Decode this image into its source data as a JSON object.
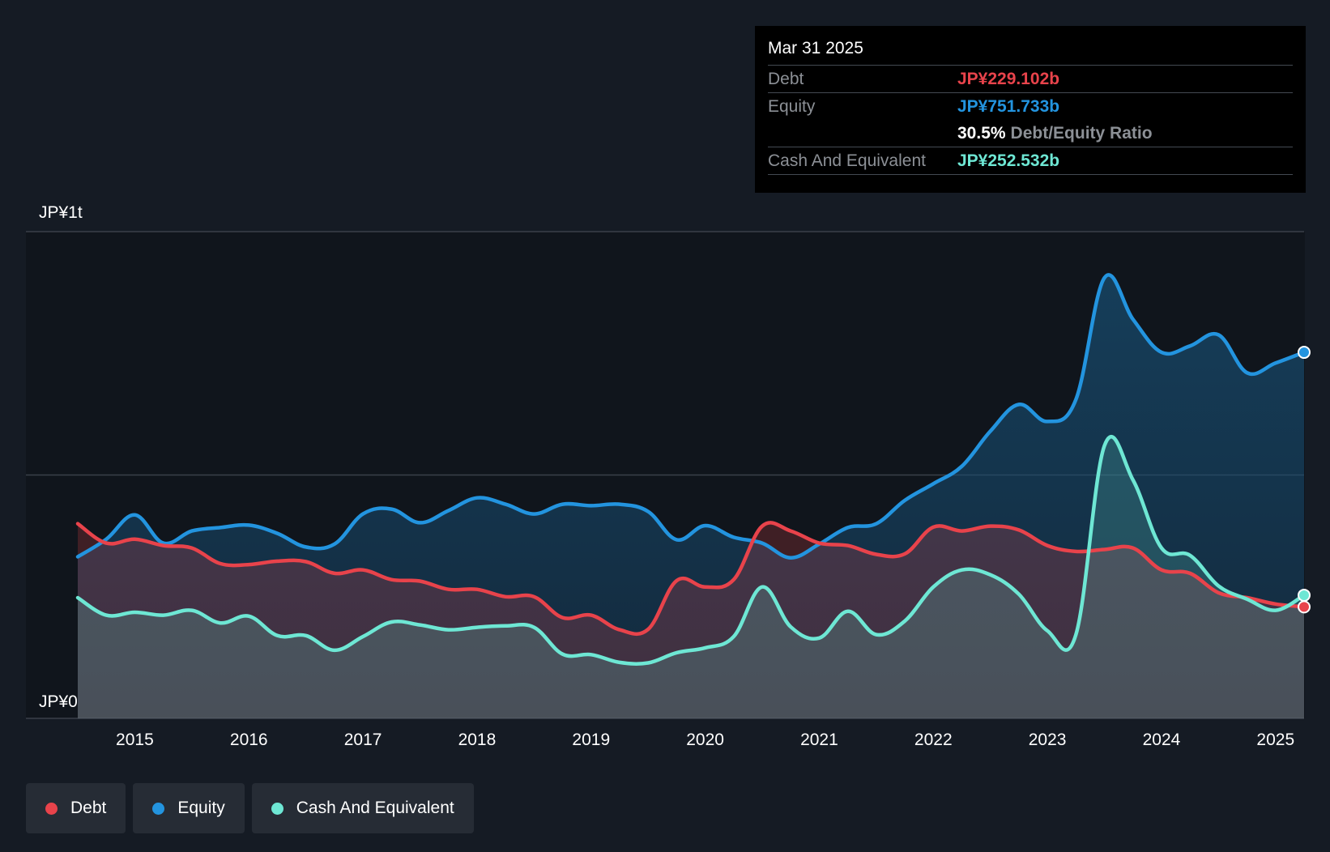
{
  "tooltip": {
    "date": "Mar 31 2025",
    "debt_label": "Debt",
    "debt_value": "JP¥229.102b",
    "equity_label": "Equity",
    "equity_value": "JP¥751.733b",
    "ratio_value": "30.5%",
    "ratio_label": "Debt/Equity Ratio",
    "cash_label": "Cash And Equivalent",
    "cash_value": "JP¥252.532b"
  },
  "legend": [
    {
      "label": "Debt",
      "color": "#e8434b"
    },
    {
      "label": "Equity",
      "color": "#2394df"
    },
    {
      "label": "Cash And Equivalent",
      "color": "#6ee7d4"
    }
  ],
  "colors": {
    "debt": "#e8434b",
    "equity": "#2394df",
    "cash": "#6ee7d4"
  },
  "chart_data": {
    "type": "area",
    "y_unit": "JP¥ billions",
    "ylim": [
      0,
      1000
    ],
    "y_tick_labels": [
      {
        "value": 1000,
        "label": "JP¥1t"
      },
      {
        "value": 0,
        "label": "JP¥0"
      }
    ],
    "gridlines": [
      1000,
      500
    ],
    "xlim": [
      2014.5,
      2025.25
    ],
    "x_ticks": [
      "2015",
      "2016",
      "2017",
      "2018",
      "2019",
      "2020",
      "2021",
      "2022",
      "2023",
      "2024",
      "2025"
    ],
    "series": [
      {
        "name": "Equity",
        "color": "#2394df",
        "points": [
          [
            2014.5,
            332
          ],
          [
            2014.75,
            368
          ],
          [
            2015.0,
            418
          ],
          [
            2015.25,
            360
          ],
          [
            2015.5,
            385
          ],
          [
            2015.75,
            392
          ],
          [
            2016.0,
            397
          ],
          [
            2016.25,
            380
          ],
          [
            2016.5,
            352
          ],
          [
            2016.75,
            358
          ],
          [
            2017.0,
            420
          ],
          [
            2017.25,
            430
          ],
          [
            2017.5,
            402
          ],
          [
            2017.75,
            427
          ],
          [
            2018.0,
            453
          ],
          [
            2018.25,
            440
          ],
          [
            2018.5,
            420
          ],
          [
            2018.75,
            440
          ],
          [
            2019.0,
            437
          ],
          [
            2019.25,
            440
          ],
          [
            2019.5,
            425
          ],
          [
            2019.75,
            367
          ],
          [
            2020.0,
            396
          ],
          [
            2020.25,
            372
          ],
          [
            2020.5,
            360
          ],
          [
            2020.75,
            330
          ],
          [
            2021.0,
            358
          ],
          [
            2021.25,
            392
          ],
          [
            2021.5,
            400
          ],
          [
            2021.75,
            448
          ],
          [
            2022.0,
            482
          ],
          [
            2022.25,
            518
          ],
          [
            2022.5,
            590
          ],
          [
            2022.75,
            645
          ],
          [
            2023.0,
            610
          ],
          [
            2023.25,
            655
          ],
          [
            2023.5,
            905
          ],
          [
            2023.75,
            820
          ],
          [
            2024.0,
            752
          ],
          [
            2024.25,
            765
          ],
          [
            2024.5,
            788
          ],
          [
            2024.75,
            710
          ],
          [
            2025.0,
            730
          ],
          [
            2025.25,
            752
          ]
        ]
      },
      {
        "name": "Debt",
        "color": "#e8434b",
        "points": [
          [
            2014.5,
            400
          ],
          [
            2014.75,
            360
          ],
          [
            2015.0,
            368
          ],
          [
            2015.25,
            355
          ],
          [
            2015.5,
            350
          ],
          [
            2015.75,
            318
          ],
          [
            2016.0,
            316
          ],
          [
            2016.25,
            323
          ],
          [
            2016.5,
            322
          ],
          [
            2016.75,
            298
          ],
          [
            2017.0,
            305
          ],
          [
            2017.25,
            285
          ],
          [
            2017.5,
            282
          ],
          [
            2017.75,
            265
          ],
          [
            2018.0,
            265
          ],
          [
            2018.25,
            250
          ],
          [
            2018.5,
            250
          ],
          [
            2018.75,
            207
          ],
          [
            2019.0,
            212
          ],
          [
            2019.25,
            182
          ],
          [
            2019.5,
            183
          ],
          [
            2019.75,
            283
          ],
          [
            2020.0,
            270
          ],
          [
            2020.25,
            285
          ],
          [
            2020.5,
            395
          ],
          [
            2020.75,
            385
          ],
          [
            2021.0,
            360
          ],
          [
            2021.25,
            355
          ],
          [
            2021.5,
            337
          ],
          [
            2021.75,
            338
          ],
          [
            2022.0,
            393
          ],
          [
            2022.25,
            385
          ],
          [
            2022.5,
            395
          ],
          [
            2022.75,
            387
          ],
          [
            2023.0,
            355
          ],
          [
            2023.25,
            343
          ],
          [
            2023.5,
            347
          ],
          [
            2023.75,
            350
          ],
          [
            2024.0,
            305
          ],
          [
            2024.25,
            298
          ],
          [
            2024.5,
            258
          ],
          [
            2024.75,
            248
          ],
          [
            2025.0,
            235
          ],
          [
            2025.25,
            229
          ]
        ]
      },
      {
        "name": "Cash And Equivalent",
        "color": "#6ee7d4",
        "points": [
          [
            2014.5,
            248
          ],
          [
            2014.75,
            212
          ],
          [
            2015.0,
            218
          ],
          [
            2015.25,
            212
          ],
          [
            2015.5,
            222
          ],
          [
            2015.75,
            196
          ],
          [
            2016.0,
            210
          ],
          [
            2016.25,
            170
          ],
          [
            2016.5,
            170
          ],
          [
            2016.75,
            140
          ],
          [
            2017.0,
            168
          ],
          [
            2017.25,
            198
          ],
          [
            2017.5,
            192
          ],
          [
            2017.75,
            182
          ],
          [
            2018.0,
            187
          ],
          [
            2018.25,
            190
          ],
          [
            2018.5,
            187
          ],
          [
            2018.75,
            132
          ],
          [
            2019.0,
            131
          ],
          [
            2019.25,
            115
          ],
          [
            2019.5,
            114
          ],
          [
            2019.75,
            135
          ],
          [
            2020.0,
            145
          ],
          [
            2020.25,
            168
          ],
          [
            2020.5,
            270
          ],
          [
            2020.75,
            188
          ],
          [
            2021.0,
            165
          ],
          [
            2021.25,
            220
          ],
          [
            2021.5,
            172
          ],
          [
            2021.75,
            200
          ],
          [
            2022.0,
            270
          ],
          [
            2022.25,
            305
          ],
          [
            2022.5,
            295
          ],
          [
            2022.75,
            255
          ],
          [
            2023.0,
            180
          ],
          [
            2023.25,
            172
          ],
          [
            2023.5,
            560
          ],
          [
            2023.75,
            490
          ],
          [
            2024.0,
            350
          ],
          [
            2024.25,
            335
          ],
          [
            2024.5,
            272
          ],
          [
            2024.75,
            245
          ],
          [
            2025.0,
            222
          ],
          [
            2025.25,
            253
          ]
        ]
      }
    ],
    "legend_position": "bottom-left"
  }
}
